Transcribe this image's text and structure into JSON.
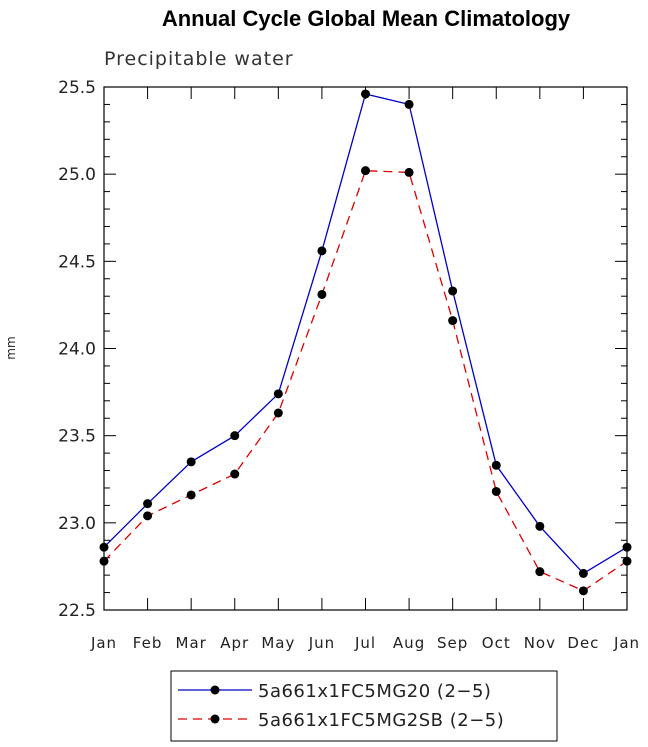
{
  "chart_data": {
    "type": "line",
    "title": "Annual Cycle Global Mean Climatology",
    "subtitle": "Precipitable water",
    "xlabel": "",
    "ylabel": "mm",
    "categories": [
      "Jan",
      "Feb",
      "Mar",
      "Apr",
      "May",
      "Jun",
      "Jul",
      "Aug",
      "Sep",
      "Oct",
      "Nov",
      "Dec",
      "Jan"
    ],
    "ylim": [
      22.5,
      25.5
    ],
    "yticks": [
      22.5,
      23.0,
      23.5,
      24.0,
      24.5,
      25.0,
      25.5
    ],
    "ytick_labels": [
      "22.5",
      "23.0",
      "23.5",
      "24.0",
      "24.5",
      "25.0",
      "25.5"
    ],
    "grid": false,
    "legend_position": "bottom",
    "series": [
      {
        "name": "5a661x1FC5MG20 (2−5)",
        "color": "#0000cc",
        "style": "solid",
        "values": [
          22.86,
          23.11,
          23.35,
          23.5,
          23.74,
          24.56,
          25.46,
          25.4,
          24.33,
          23.33,
          22.98,
          22.71,
          22.86
        ]
      },
      {
        "name": "5a661x1FC5MG2SB (2−5)",
        "color": "#dd0000",
        "style": "dashed",
        "values": [
          22.78,
          23.04,
          23.16,
          23.28,
          23.63,
          24.31,
          25.02,
          25.01,
          24.16,
          23.18,
          22.72,
          22.61,
          22.78
        ]
      }
    ]
  }
}
